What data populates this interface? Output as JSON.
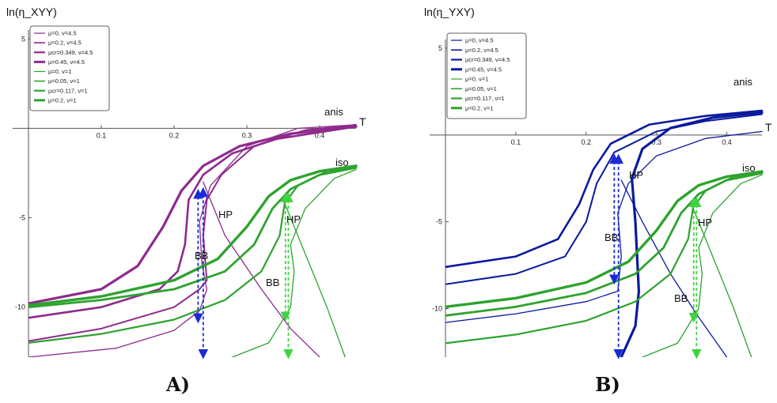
{
  "chart_data": [
    {
      "type": "line",
      "panel": "A)",
      "ylabel": "ln(η_XYY)",
      "xlabel": "T",
      "xlim": [
        0,
        0.45
      ],
      "ylim": [
        -12.8,
        5.5
      ],
      "xticks": [
        "0.1",
        "0.2",
        "0.3",
        "0.4"
      ],
      "yticks": [
        "5",
        "-5",
        "-10"
      ],
      "legend": [
        {
          "label": "μ=0, ν=4.5",
          "color": "#8e2a8e",
          "width": 1.2
        },
        {
          "label": "μ=0.2, ν=4.5",
          "color": "#8e2a8e",
          "width": 1.6
        },
        {
          "label": "μcr=0.349, ν=4.5",
          "color": "#8e2a8e",
          "width": 2.2
        },
        {
          "label": "μ=0.45, ν=4.5",
          "color": "#8e2a8e",
          "width": 3.0
        },
        {
          "label": "μ=0, ν=1",
          "color": "#2ea32e",
          "width": 1.2
        },
        {
          "label": "μ=0.05, ν=1",
          "color": "#2ea32e",
          "width": 1.6
        },
        {
          "label": "μcr=0.117, ν=1",
          "color": "#2ea32e",
          "width": 2.2
        },
        {
          "label": "μ=0.2, ν=1",
          "color": "#2ea32e",
          "width": 3.0
        }
      ],
      "annotations": {
        "anis": "anis",
        "iso": "iso",
        "hp1": "HP",
        "bb1": "BB",
        "hp2": "HP",
        "bb2": "BB"
      },
      "series": [
        {
          "color": "#8e2a8e",
          "width": 1.3,
          "points": [
            [
              0.0,
              -12.8
            ],
            [
              0.12,
              -12.3
            ],
            [
              0.2,
              -11.3
            ],
            [
              0.235,
              -10.2
            ],
            [
              0.245,
              -9.0
            ],
            [
              0.238,
              -7.5
            ],
            [
              0.235,
              -5.2
            ],
            [
              0.25,
              -3.2
            ],
            [
              0.3,
              -1.0
            ],
            [
              0.37,
              0.0
            ],
            [
              0.45,
              0.2
            ]
          ]
        },
        {
          "color": "#8e2a8e",
          "width": 1.3,
          "points": [
            [
              0.24,
              -3.0
            ],
            [
              0.27,
              -6.0
            ],
            [
              0.32,
              -9.0
            ],
            [
              0.36,
              -11.2
            ],
            [
              0.4,
              -12.8
            ]
          ]
        },
        {
          "color": "#8e2a8e",
          "width": 2.0,
          "points": [
            [
              0.0,
              -11.9
            ],
            [
              0.1,
              -11.2
            ],
            [
              0.2,
              -10.0
            ],
            [
              0.235,
              -9.0
            ],
            [
              0.245,
              -8.5
            ],
            [
              0.24,
              -6.0
            ],
            [
              0.245,
              -4.0
            ],
            [
              0.265,
              -2.6
            ],
            [
              0.31,
              -1.0
            ],
            [
              0.38,
              -0.1
            ],
            [
              0.45,
              0.2
            ]
          ]
        },
        {
          "color": "#8e2a8e",
          "width": 2.6,
          "points": [
            [
              0.0,
              -10.6
            ],
            [
              0.1,
              -10.0
            ],
            [
              0.18,
              -9.0
            ],
            [
              0.205,
              -8.0
            ],
            [
              0.215,
              -6.5
            ],
            [
              0.22,
              -4.0
            ],
            [
              0.24,
              -2.6
            ],
            [
              0.28,
              -1.4
            ],
            [
              0.34,
              -0.6
            ],
            [
              0.45,
              0.1
            ]
          ]
        },
        {
          "color": "#8e2a8e",
          "width": 3.2,
          "points": [
            [
              0.0,
              -9.8
            ],
            [
              0.1,
              -9.0
            ],
            [
              0.15,
              -7.7
            ],
            [
              0.185,
              -5.5
            ],
            [
              0.21,
              -3.5
            ],
            [
              0.24,
              -2.1
            ],
            [
              0.29,
              -1.0
            ],
            [
              0.36,
              -0.3
            ],
            [
              0.45,
              0.1
            ]
          ]
        },
        {
          "color": "#2ea32e",
          "width": 1.3,
          "points": [
            [
              0.28,
              -12.8
            ],
            [
              0.33,
              -12.0
            ],
            [
              0.36,
              -10.0
            ],
            [
              0.365,
              -8.0
            ],
            [
              0.36,
              -6.5
            ],
            [
              0.38,
              -4.5
            ],
            [
              0.42,
              -2.8
            ],
            [
              0.45,
              -2.3
            ]
          ]
        },
        {
          "color": "#2ea32e",
          "width": 1.3,
          "points": [
            [
              0.35,
              -4.0
            ],
            [
              0.38,
              -7.0
            ],
            [
              0.41,
              -10.0
            ],
            [
              0.435,
              -12.8
            ]
          ]
        },
        {
          "color": "#2ea32e",
          "width": 2.2,
          "points": [
            [
              0.0,
              -12.0
            ],
            [
              0.1,
              -11.5
            ],
            [
              0.2,
              -10.7
            ],
            [
              0.27,
              -9.6
            ],
            [
              0.32,
              -8.0
            ],
            [
              0.345,
              -6.0
            ],
            [
              0.352,
              -4.2
            ],
            [
              0.37,
              -3.2
            ],
            [
              0.41,
              -2.4
            ],
            [
              0.45,
              -2.2
            ]
          ]
        },
        {
          "color": "#2ea32e",
          "width": 2.8,
          "points": [
            [
              0.0,
              -10.0
            ],
            [
              0.1,
              -9.6
            ],
            [
              0.2,
              -9.0
            ],
            [
              0.27,
              -8.0
            ],
            [
              0.31,
              -6.5
            ],
            [
              0.335,
              -4.5
            ],
            [
              0.36,
              -3.4
            ],
            [
              0.4,
              -2.6
            ],
            [
              0.45,
              -2.2
            ]
          ]
        },
        {
          "color": "#2ea32e",
          "width": 3.4,
          "points": [
            [
              0.0,
              -9.9
            ],
            [
              0.1,
              -9.4
            ],
            [
              0.2,
              -8.5
            ],
            [
              0.26,
              -7.3
            ],
            [
              0.3,
              -5.5
            ],
            [
              0.33,
              -3.8
            ],
            [
              0.36,
              -2.9
            ],
            [
              0.4,
              -2.4
            ],
            [
              0.45,
              -2.1
            ]
          ]
        }
      ],
      "arrows": [
        {
          "x": 0.233,
          "y1": -3.5,
          "y2": -10.8,
          "color": "#1a2bd6",
          "dir": "both"
        },
        {
          "x": 0.24,
          "y1": -3.4,
          "y2": -12.8,
          "color": "#1a2bd6",
          "dir": "both"
        },
        {
          "x": 0.353,
          "y1": -3.7,
          "y2": -10.7,
          "color": "#3fd43f",
          "dir": "both"
        },
        {
          "x": 0.357,
          "y1": -3.7,
          "y2": -12.8,
          "color": "#3fd43f",
          "dir": "both"
        }
      ]
    },
    {
      "type": "line",
      "panel": "B)",
      "ylabel": "ln(η_YXY)",
      "xlabel": "T",
      "xlim": [
        0,
        0.45
      ],
      "ylim": [
        -12.8,
        5.5
      ],
      "xticks": [
        "0.1",
        "0.2",
        "0.3",
        "0.4"
      ],
      "yticks": [
        "5",
        "-5",
        "-10"
      ],
      "legend": [
        {
          "label": "μ=0, ν=4.5",
          "color": "#0a1a9e",
          "width": 1.2
        },
        {
          "label": "μ=0.2, ν=4.5",
          "color": "#0a1a9e",
          "width": 1.6
        },
        {
          "label": "μcr=0.349, ν=4.5",
          "color": "#0a1a9e",
          "width": 2.2
        },
        {
          "label": "μ=0.45, ν=4.5",
          "color": "#0a1a9e",
          "width": 3.0
        },
        {
          "label": "μ=0, ν=1",
          "color": "#2ea32e",
          "width": 1.2
        },
        {
          "label": "μ=0.05, ν=1",
          "color": "#2ea32e",
          "width": 1.6
        },
        {
          "label": "μcr=0.117, ν=1",
          "color": "#2ea32e",
          "width": 2.2
        },
        {
          "label": "μ=0.2, ν=1",
          "color": "#2ea32e",
          "width": 3.0
        }
      ],
      "annotations": {
        "anis": "anis",
        "iso": "iso",
        "hp1": "HP",
        "bb1": "BB",
        "hp2": "HP",
        "bb2": "BB"
      },
      "series": [
        {
          "color": "#0a1a9e",
          "width": 1.3,
          "points": [
            [
              0.0,
              -10.8
            ],
            [
              0.1,
              -10.3
            ],
            [
              0.2,
              -9.6
            ],
            [
              0.245,
              -9.0
            ],
            [
              0.25,
              -7.0
            ],
            [
              0.245,
              -4.5
            ],
            [
              0.26,
              -2.8
            ],
            [
              0.3,
              -1.2
            ],
            [
              0.37,
              -0.2
            ],
            [
              0.45,
              0.2
            ]
          ]
        },
        {
          "color": "#0a1a9e",
          "width": 1.3,
          "points": [
            [
              0.25,
              -2.6
            ],
            [
              0.28,
              -5.0
            ],
            [
              0.32,
              -8.0
            ],
            [
              0.36,
              -10.5
            ],
            [
              0.4,
              -12.8
            ]
          ]
        },
        {
          "color": "#0a1a9e",
          "width": 2.0,
          "points": [
            [
              0.0,
              -8.6
            ],
            [
              0.1,
              -8.0
            ],
            [
              0.17,
              -7.0
            ],
            [
              0.2,
              -5.0
            ],
            [
              0.215,
              -2.8
            ],
            [
              0.24,
              -1.0
            ],
            [
              0.3,
              0.2
            ],
            [
              0.37,
              0.8
            ],
            [
              0.45,
              1.2
            ]
          ]
        },
        {
          "color": "#0a1a9e",
          "width": 2.6,
          "points": [
            [
              0.0,
              -7.6
            ],
            [
              0.1,
              -7.0
            ],
            [
              0.16,
              -6.0
            ],
            [
              0.19,
              -4.0
            ],
            [
              0.21,
              -2.0
            ],
            [
              0.235,
              -0.5
            ],
            [
              0.29,
              0.6
            ],
            [
              0.37,
              1.1
            ],
            [
              0.45,
              1.4
            ]
          ]
        },
        {
          "color": "#0a1a9e",
          "width": 3.2,
          "points": [
            [
              0.25,
              -12.8
            ],
            [
              0.27,
              -11.0
            ],
            [
              0.275,
              -9.0
            ],
            [
              0.27,
              -5.0
            ],
            [
              0.265,
              -2.5
            ],
            [
              0.28,
              -0.8
            ],
            [
              0.32,
              0.4
            ],
            [
              0.38,
              1.0
            ],
            [
              0.45,
              1.3
            ]
          ]
        },
        {
          "color": "#2ea32e",
          "width": 1.3,
          "points": [
            [
              0.28,
              -12.8
            ],
            [
              0.33,
              -12.0
            ],
            [
              0.36,
              -10.0
            ],
            [
              0.365,
              -8.0
            ],
            [
              0.36,
              -6.5
            ],
            [
              0.38,
              -4.5
            ],
            [
              0.42,
              -2.8
            ],
            [
              0.45,
              -2.3
            ]
          ]
        },
        {
          "color": "#2ea32e",
          "width": 1.3,
          "points": [
            [
              0.35,
              -4.0
            ],
            [
              0.38,
              -7.0
            ],
            [
              0.41,
              -10.0
            ],
            [
              0.435,
              -12.8
            ]
          ]
        },
        {
          "color": "#2ea32e",
          "width": 2.2,
          "points": [
            [
              0.0,
              -12.0
            ],
            [
              0.1,
              -11.5
            ],
            [
              0.2,
              -10.7
            ],
            [
              0.27,
              -9.6
            ],
            [
              0.32,
              -8.0
            ],
            [
              0.345,
              -6.0
            ],
            [
              0.352,
              -4.2
            ],
            [
              0.37,
              -3.2
            ],
            [
              0.41,
              -2.4
            ],
            [
              0.45,
              -2.2
            ]
          ]
        },
        {
          "color": "#2ea32e",
          "width": 2.8,
          "points": [
            [
              0.0,
              -10.4
            ],
            [
              0.1,
              -9.9
            ],
            [
              0.2,
              -9.1
            ],
            [
              0.27,
              -8.0
            ],
            [
              0.31,
              -6.5
            ],
            [
              0.335,
              -4.5
            ],
            [
              0.36,
              -3.4
            ],
            [
              0.4,
              -2.6
            ],
            [
              0.45,
              -2.2
            ]
          ]
        },
        {
          "color": "#2ea32e",
          "width": 3.4,
          "points": [
            [
              0.0,
              -9.9
            ],
            [
              0.1,
              -9.4
            ],
            [
              0.2,
              -8.5
            ],
            [
              0.26,
              -7.3
            ],
            [
              0.3,
              -5.5
            ],
            [
              0.33,
              -3.8
            ],
            [
              0.36,
              -2.9
            ],
            [
              0.4,
              -2.4
            ],
            [
              0.45,
              -2.1
            ]
          ]
        }
      ],
      "arrows": [
        {
          "x": 0.24,
          "y1": -1.2,
          "y2": -8.5,
          "color": "#1a2bd6",
          "dir": "both"
        },
        {
          "x": 0.246,
          "y1": -1.2,
          "y2": -12.8,
          "color": "#1a2bd6",
          "dir": "both"
        },
        {
          "x": 0.353,
          "y1": -3.7,
          "y2": -10.7,
          "color": "#3fd43f",
          "dir": "both"
        },
        {
          "x": 0.357,
          "y1": -3.7,
          "y2": -12.8,
          "color": "#3fd43f",
          "dir": "both"
        }
      ]
    }
  ]
}
